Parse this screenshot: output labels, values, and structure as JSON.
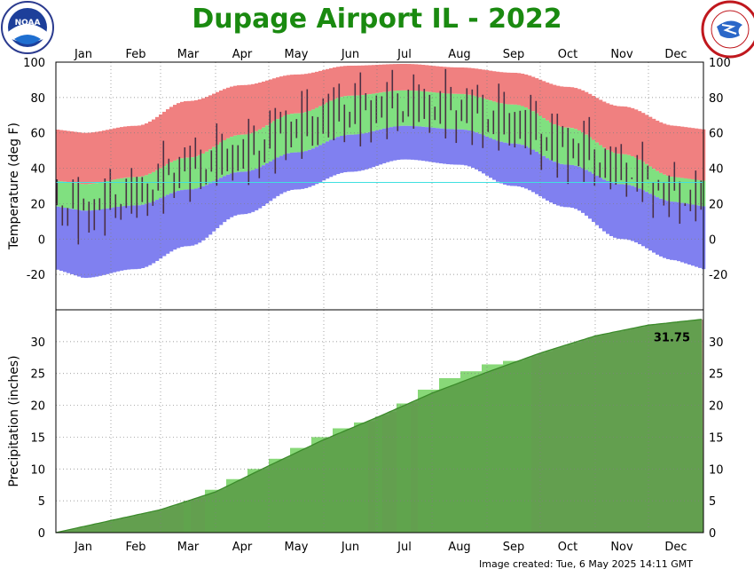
{
  "title": "Dupage Airport IL - 2022",
  "footer": "Image created: Tue, 6 May 2025 14:11 GMT",
  "logos": {
    "left": "noaa-logo",
    "right": "nws-logo",
    "left_text": "NOAA"
  },
  "colors": {
    "title": "#1a8a10",
    "record_high_band": "#f08080",
    "normal_band": "#80e080",
    "record_low_band": "#8080f0",
    "daily_bar": "#4a2f44",
    "precip_normal": "#5c9f4a",
    "precip_actual": "#88d878",
    "precip_deficit": "#b09a88",
    "freezing_line": "#40e0e0"
  },
  "chart_data": [
    {
      "type": "bar",
      "panel": "temperature",
      "ylabel": "Temperature (deg F)",
      "ylim": [
        -40,
        100
      ],
      "yticks": [
        100,
        80,
        60,
        40,
        20,
        0,
        -20
      ],
      "months": [
        "Jan",
        "Feb",
        "Mar",
        "Apr",
        "May",
        "Jun",
        "Jul",
        "Aug",
        "Sep",
        "Oct",
        "Nov",
        "Dec"
      ],
      "grid": true,
      "freezing_line": 32,
      "record_high": [
        {
          "month": "Jan",
          "value": 60
        },
        {
          "month": "Feb",
          "value": 64
        },
        {
          "month": "Mar",
          "value": 78
        },
        {
          "month": "Apr",
          "value": 87
        },
        {
          "month": "May",
          "value": 93
        },
        {
          "month": "Jun",
          "value": 98
        },
        {
          "month": "Jul",
          "value": 99
        },
        {
          "month": "Aug",
          "value": 97
        },
        {
          "month": "Sep",
          "value": 94
        },
        {
          "month": "Oct",
          "value": 86
        },
        {
          "month": "Nov",
          "value": 75
        },
        {
          "month": "Dec",
          "value": 64
        }
      ],
      "normal_high": [
        {
          "month": "Jan",
          "value": 31
        },
        {
          "month": "Feb",
          "value": 35
        },
        {
          "month": "Mar",
          "value": 46
        },
        {
          "month": "Apr",
          "value": 59
        },
        {
          "month": "May",
          "value": 71
        },
        {
          "month": "Jun",
          "value": 81
        },
        {
          "month": "Jul",
          "value": 84
        },
        {
          "month": "Aug",
          "value": 82
        },
        {
          "month": "Sep",
          "value": 76
        },
        {
          "month": "Oct",
          "value": 63
        },
        {
          "month": "Nov",
          "value": 48
        },
        {
          "month": "Dec",
          "value": 35
        }
      ],
      "normal_low": [
        {
          "month": "Jan",
          "value": 16
        },
        {
          "month": "Feb",
          "value": 19
        },
        {
          "month": "Mar",
          "value": 28
        },
        {
          "month": "Apr",
          "value": 38
        },
        {
          "month": "May",
          "value": 49
        },
        {
          "month": "Jun",
          "value": 59
        },
        {
          "month": "Jul",
          "value": 64
        },
        {
          "month": "Aug",
          "value": 62
        },
        {
          "month": "Sep",
          "value": 54
        },
        {
          "month": "Oct",
          "value": 42
        },
        {
          "month": "Nov",
          "value": 31
        },
        {
          "month": "Dec",
          "value": 21
        }
      ],
      "record_low": [
        {
          "month": "Jan",
          "value": -22
        },
        {
          "month": "Feb",
          "value": -17
        },
        {
          "month": "Mar",
          "value": -4
        },
        {
          "month": "Apr",
          "value": 14
        },
        {
          "month": "May",
          "value": 28
        },
        {
          "month": "Jun",
          "value": 38
        },
        {
          "month": "Jul",
          "value": 45
        },
        {
          "month": "Aug",
          "value": 42
        },
        {
          "month": "Sep",
          "value": 30
        },
        {
          "month": "Oct",
          "value": 18
        },
        {
          "month": "Nov",
          "value": 0
        },
        {
          "month": "Dec",
          "value": -12
        }
      ],
      "observed_2022": [
        {
          "month": "Jan",
          "high": 25,
          "low": 7
        },
        {
          "month": "Feb",
          "high": 33,
          "low": 15
        },
        {
          "month": "Mar",
          "high": 50,
          "low": 31
        },
        {
          "month": "Apr",
          "high": 57,
          "low": 37
        },
        {
          "month": "May",
          "high": 74,
          "low": 52
        },
        {
          "month": "Jun",
          "high": 83,
          "low": 61
        },
        {
          "month": "Jul",
          "high": 85,
          "low": 66
        },
        {
          "month": "Aug",
          "high": 83,
          "low": 63
        },
        {
          "month": "Sep",
          "high": 76,
          "low": 54
        },
        {
          "month": "Oct",
          "high": 63,
          "low": 41
        },
        {
          "month": "Nov",
          "high": 48,
          "low": 30
        },
        {
          "month": "Dec",
          "high": 33,
          "low": 18
        }
      ]
    },
    {
      "type": "area",
      "panel": "precipitation",
      "ylabel": "Precipitation (inches)",
      "ylim": [
        0,
        35
      ],
      "yticks": [
        0,
        5,
        10,
        15,
        20,
        25,
        30
      ],
      "months": [
        "Jan",
        "Feb",
        "Mar",
        "Apr",
        "May",
        "Jun",
        "Jul",
        "Aug",
        "Sep",
        "Oct",
        "Nov",
        "Dec"
      ],
      "grid": true,
      "annotation": "31.75",
      "normal_cumulative": [
        {
          "day": 1,
          "value": 0
        },
        {
          "day": 32,
          "value": 1.9
        },
        {
          "day": 60,
          "value": 3.6
        },
        {
          "day": 91,
          "value": 6.4
        },
        {
          "day": 121,
          "value": 10.5
        },
        {
          "day": 152,
          "value": 14.6
        },
        {
          "day": 182,
          "value": 18.1
        },
        {
          "day": 213,
          "value": 21.9
        },
        {
          "day": 244,
          "value": 25.2
        },
        {
          "day": 274,
          "value": 28.2
        },
        {
          "day": 305,
          "value": 30.9
        },
        {
          "day": 335,
          "value": 32.6
        },
        {
          "day": 365,
          "value": 33.5
        }
      ],
      "actual_cumulative": [
        {
          "day": 1,
          "value": 0
        },
        {
          "day": 32,
          "value": 1.3
        },
        {
          "day": 60,
          "value": 3.1
        },
        {
          "day": 91,
          "value": 7.6
        },
        {
          "day": 121,
          "value": 11.6
        },
        {
          "day": 152,
          "value": 16.0
        },
        {
          "day": 182,
          "value": 18.3
        },
        {
          "day": 213,
          "value": 23.9
        },
        {
          "day": 244,
          "value": 26.7
        },
        {
          "day": 274,
          "value": 27.6
        },
        {
          "day": 305,
          "value": 29.5
        },
        {
          "day": 335,
          "value": 31.4
        },
        {
          "day": 365,
          "value": 31.75
        }
      ]
    }
  ]
}
